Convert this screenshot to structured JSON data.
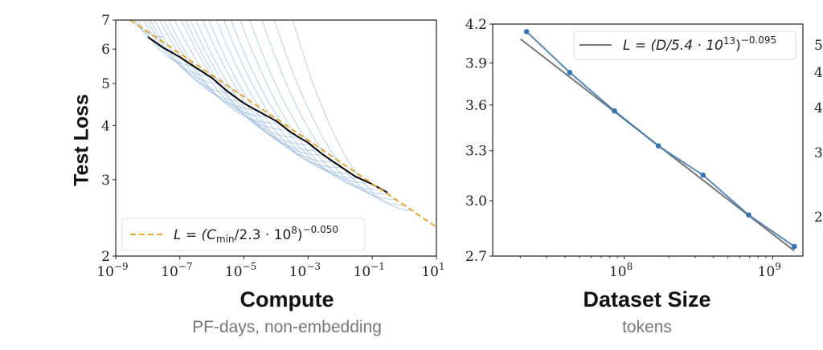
{
  "chart_data": [
    {
      "type": "line",
      "name": "compute",
      "title": "Compute",
      "subtitle": "PF-days, non-embedding",
      "ylabel": "Test Loss",
      "xscale": "log",
      "yscale": "log",
      "xlim": [
        1e-09,
        10
      ],
      "ylim": [
        2,
        7
      ],
      "xticks": [
        {
          "v": 1e-09,
          "e": "−9"
        },
        {
          "v": 1e-07,
          "e": "−7"
        },
        {
          "v": 1e-05,
          "e": "−5"
        },
        {
          "v": 0.001,
          "e": "−3"
        },
        {
          "v": 0.1,
          "e": "−1"
        },
        {
          "v": 10,
          "e": "1"
        }
      ],
      "yticks": [
        {
          "v": 2,
          "label": "2"
        },
        {
          "v": 3,
          "label": "3"
        },
        {
          "v": 4,
          "label": "4"
        },
        {
          "v": 5,
          "label": "5"
        },
        {
          "v": 6,
          "label": "6"
        },
        {
          "v": 7,
          "label": "7"
        }
      ],
      "fit": {
        "scale": 230000000.0,
        "exponent": 0.05,
        "color": "#e8a838",
        "legend": {
          "prefix": "L = (C",
          "sub": "min",
          "mid": "/2.3 · 10",
          "sup1": "8",
          "close": ")",
          "sup2": "−0.050"
        }
      },
      "legend_position": "lower-left",
      "frontier": {
        "color": "#000000",
        "x": [
          1e-08,
          3e-08,
          1e-07,
          3e-07,
          1e-06,
          3e-06,
          1e-05,
          3e-05,
          0.0001,
          0.0003,
          0.001,
          0.003,
          0.01,
          0.03,
          0.1,
          0.3
        ],
        "y": [
          6.4,
          6.05,
          5.75,
          5.45,
          5.15,
          4.8,
          4.5,
          4.3,
          4.1,
          3.85,
          3.65,
          3.42,
          3.22,
          3.05,
          2.93,
          2.8
        ]
      },
      "curves_color": "#8fb5d8",
      "curves": [
        [
          1e-09,
          3e-08,
          6.4
        ],
        [
          1.5e-09,
          1e-07,
          5.9
        ],
        [
          2e-09,
          3e-07,
          5.5
        ],
        [
          3e-09,
          1e-06,
          5.2
        ],
        [
          4e-09,
          2e-06,
          5.0
        ],
        [
          5e-09,
          5e-06,
          4.75
        ],
        [
          7e-09,
          1e-05,
          4.55
        ],
        [
          1e-08,
          3e-05,
          4.35
        ],
        [
          1.4e-08,
          6e-05,
          4.2
        ],
        [
          2e-08,
          0.0001,
          4.05
        ],
        [
          3e-08,
          0.0003,
          3.9
        ],
        [
          5e-08,
          0.0006,
          3.75
        ],
        [
          7e-08,
          0.001,
          3.62
        ],
        [
          1e-07,
          0.002,
          3.5
        ],
        [
          1.5e-07,
          0.003,
          3.42
        ],
        [
          2.5e-07,
          0.006,
          3.3
        ],
        [
          4e-07,
          0.01,
          3.2
        ],
        [
          7e-07,
          0.02,
          3.1
        ],
        [
          1.2e-06,
          0.04,
          3.02
        ],
        [
          2e-06,
          0.08,
          2.95
        ],
        [
          4e-06,
          0.15,
          2.85
        ],
        [
          8e-06,
          0.3,
          2.78
        ],
        [
          2e-05,
          0.6,
          2.7
        ],
        [
          5e-05,
          1.2,
          2.62
        ],
        [
          0.0002,
          2,
          2.55
        ]
      ]
    },
    {
      "type": "line",
      "name": "dataset-size",
      "title": "Dataset Size",
      "subtitle": "tokens",
      "xscale": "log",
      "yscale": "log",
      "xlim": [
        13000000.0,
        1600000000.0
      ],
      "ylim": [
        2.7,
        4.2
      ],
      "xticks": [
        {
          "v": 100000000.0,
          "e": "8"
        },
        {
          "v": 1000000000.0,
          "e": "9"
        }
      ],
      "yticks": [
        {
          "v": 2.7,
          "label": "2.7"
        },
        {
          "v": 3.0,
          "label": "3.0"
        },
        {
          "v": 3.3,
          "label": "3.3"
        },
        {
          "v": 3.6,
          "label": "3.6"
        },
        {
          "v": 3.9,
          "label": "3.9"
        },
        {
          "v": 4.2,
          "label": "4.2"
        }
      ],
      "x": [
        22000000.0,
        43000000.0,
        86000000.0,
        170000000.0,
        340000000.0,
        690000000.0,
        1400000000.0
      ],
      "y": [
        4.14,
        3.83,
        3.56,
        3.33,
        3.15,
        2.92,
        2.75
      ],
      "series_color": "#3b75af",
      "fit": {
        "scale": 54000000000000.0,
        "exponent": 0.095,
        "color": "#777777",
        "range": [
          20000000.0,
          1400000000.0
        ],
        "legend": {
          "prefix": "L = (D/5.4 · 10",
          "sup1": "13",
          "close": ")",
          "sup2": "−0.095"
        }
      },
      "legend_position": "upper-right"
    }
  ],
  "third_panel_partial_ticks": [
    "5",
    "4",
    "4",
    "3",
    "2"
  ]
}
